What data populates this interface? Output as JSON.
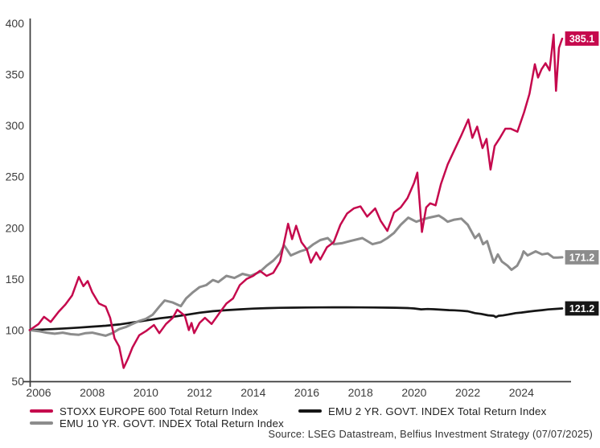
{
  "chart_data": {
    "type": "line",
    "title": "",
    "grid": false,
    "legend_position": "bottom",
    "x_axis": {
      "range": [
        2005.67,
        2025.9
      ],
      "ticks": [
        2006,
        2008,
        2010,
        2012,
        2014,
        2016,
        2018,
        2020,
        2022,
        2024
      ]
    },
    "y_axis": {
      "range": [
        50,
        400
      ],
      "ticks": [
        50,
        100,
        150,
        200,
        250,
        300,
        350,
        400
      ]
    },
    "series": [
      {
        "name": "STOXX EUROPE 600 Total Return Index",
        "color": "#C5094D",
        "end_label": "385.1",
        "points": [
          [
            2005.67,
            100
          ],
          [
            2006.0,
            106
          ],
          [
            2006.2,
            113
          ],
          [
            2006.45,
            108
          ],
          [
            2006.75,
            118
          ],
          [
            2007.0,
            125
          ],
          [
            2007.25,
            134
          ],
          [
            2007.5,
            152
          ],
          [
            2007.67,
            143
          ],
          [
            2007.83,
            148
          ],
          [
            2008.0,
            137
          ],
          [
            2008.25,
            126
          ],
          [
            2008.5,
            123
          ],
          [
            2008.67,
            112
          ],
          [
            2008.83,
            92
          ],
          [
            2009.0,
            84
          ],
          [
            2009.17,
            63
          ],
          [
            2009.33,
            72
          ],
          [
            2009.5,
            83
          ],
          [
            2009.75,
            95
          ],
          [
            2010.0,
            99
          ],
          [
            2010.3,
            105
          ],
          [
            2010.5,
            97
          ],
          [
            2010.75,
            106
          ],
          [
            2011.0,
            112
          ],
          [
            2011.17,
            120
          ],
          [
            2011.45,
            114
          ],
          [
            2011.6,
            100
          ],
          [
            2011.7,
            107
          ],
          [
            2011.8,
            97
          ],
          [
            2012.0,
            107
          ],
          [
            2012.2,
            112
          ],
          [
            2012.45,
            106
          ],
          [
            2012.75,
            117
          ],
          [
            2013.0,
            126
          ],
          [
            2013.25,
            131
          ],
          [
            2013.5,
            144
          ],
          [
            2013.75,
            150
          ],
          [
            2014.0,
            153
          ],
          [
            2014.25,
            158
          ],
          [
            2014.5,
            153
          ],
          [
            2014.75,
            156
          ],
          [
            2015.0,
            167
          ],
          [
            2015.3,
            204
          ],
          [
            2015.45,
            189
          ],
          [
            2015.6,
            202
          ],
          [
            2015.8,
            186
          ],
          [
            2016.0,
            179
          ],
          [
            2016.15,
            166
          ],
          [
            2016.35,
            176
          ],
          [
            2016.5,
            169
          ],
          [
            2016.75,
            181
          ],
          [
            2017.0,
            186
          ],
          [
            2017.25,
            203
          ],
          [
            2017.5,
            214
          ],
          [
            2017.75,
            219
          ],
          [
            2018.0,
            221
          ],
          [
            2018.25,
            211
          ],
          [
            2018.55,
            219
          ],
          [
            2018.75,
            207
          ],
          [
            2019.0,
            197
          ],
          [
            2019.25,
            215
          ],
          [
            2019.5,
            220
          ],
          [
            2019.75,
            229
          ],
          [
            2020.0,
            244
          ],
          [
            2020.12,
            254
          ],
          [
            2020.29,
            196
          ],
          [
            2020.45,
            220
          ],
          [
            2020.6,
            224
          ],
          [
            2020.8,
            222
          ],
          [
            2021.0,
            243
          ],
          [
            2021.25,
            262
          ],
          [
            2021.5,
            276
          ],
          [
            2021.75,
            290
          ],
          [
            2022.02,
            306
          ],
          [
            2022.17,
            288
          ],
          [
            2022.35,
            299
          ],
          [
            2022.55,
            278
          ],
          [
            2022.7,
            287
          ],
          [
            2022.85,
            257
          ],
          [
            2023.0,
            280
          ],
          [
            2023.2,
            288
          ],
          [
            2023.4,
            297
          ],
          [
            2023.6,
            297
          ],
          [
            2023.85,
            294
          ],
          [
            2024.1,
            313
          ],
          [
            2024.3,
            331
          ],
          [
            2024.5,
            360
          ],
          [
            2024.62,
            347
          ],
          [
            2024.75,
            355
          ],
          [
            2024.9,
            361
          ],
          [
            2025.05,
            354
          ],
          [
            2025.2,
            389
          ],
          [
            2025.29,
            334
          ],
          [
            2025.4,
            376
          ],
          [
            2025.52,
            385.1
          ]
        ]
      },
      {
        "name": "EMU 10 YR. GOVT. INDEX Total Return Index",
        "color": "#8C8C8C",
        "end_label": "171.2",
        "points": [
          [
            2005.67,
            100
          ],
          [
            2006.0,
            99
          ],
          [
            2006.3,
            97.5
          ],
          [
            2006.6,
            96.5
          ],
          [
            2006.9,
            97.5
          ],
          [
            2007.2,
            96
          ],
          [
            2007.5,
            95.5
          ],
          [
            2007.75,
            97
          ],
          [
            2008.0,
            97.5
          ],
          [
            2008.25,
            96
          ],
          [
            2008.5,
            94.5
          ],
          [
            2008.75,
            97
          ],
          [
            2009.0,
            101
          ],
          [
            2009.25,
            103
          ],
          [
            2009.5,
            106
          ],
          [
            2009.75,
            109
          ],
          [
            2010.0,
            111
          ],
          [
            2010.25,
            115
          ],
          [
            2010.5,
            123
          ],
          [
            2010.7,
            129
          ],
          [
            2011.0,
            127
          ],
          [
            2011.3,
            123.5
          ],
          [
            2011.5,
            131
          ],
          [
            2011.75,
            137
          ],
          [
            2012.0,
            142
          ],
          [
            2012.25,
            144
          ],
          [
            2012.5,
            149
          ],
          [
            2012.7,
            147
          ],
          [
            2013.0,
            153
          ],
          [
            2013.3,
            151
          ],
          [
            2013.6,
            155
          ],
          [
            2013.9,
            153
          ],
          [
            2014.25,
            157
          ],
          [
            2014.5,
            163
          ],
          [
            2014.75,
            168
          ],
          [
            2015.0,
            175
          ],
          [
            2015.15,
            183
          ],
          [
            2015.4,
            173
          ],
          [
            2015.75,
            177
          ],
          [
            2016.0,
            179
          ],
          [
            2016.25,
            184
          ],
          [
            2016.5,
            188
          ],
          [
            2016.78,
            190
          ],
          [
            2017.0,
            184
          ],
          [
            2017.3,
            185
          ],
          [
            2017.6,
            187
          ],
          [
            2018.07,
            190
          ],
          [
            2018.45,
            184
          ],
          [
            2018.75,
            186
          ],
          [
            2019.0,
            190
          ],
          [
            2019.25,
            195
          ],
          [
            2019.5,
            203
          ],
          [
            2019.78,
            210
          ],
          [
            2020.08,
            206
          ],
          [
            2020.29,
            208
          ],
          [
            2020.56,
            210
          ],
          [
            2020.92,
            212
          ],
          [
            2021.1,
            209
          ],
          [
            2021.25,
            206
          ],
          [
            2021.5,
            208
          ],
          [
            2021.76,
            209
          ],
          [
            2022.0,
            203
          ],
          [
            2022.27,
            190
          ],
          [
            2022.42,
            194
          ],
          [
            2022.57,
            184
          ],
          [
            2022.72,
            187
          ],
          [
            2022.97,
            166
          ],
          [
            2023.12,
            174
          ],
          [
            2023.27,
            167
          ],
          [
            2023.48,
            163
          ],
          [
            2023.63,
            159
          ],
          [
            2023.84,
            163
          ],
          [
            2024.0,
            171
          ],
          [
            2024.08,
            177
          ],
          [
            2024.23,
            173
          ],
          [
            2024.53,
            177
          ],
          [
            2024.77,
            174
          ],
          [
            2024.98,
            175
          ],
          [
            2025.19,
            171
          ],
          [
            2025.34,
            171
          ],
          [
            2025.52,
            171.2
          ]
        ]
      },
      {
        "name": "EMU 2 YR. GOVT. INDEX Total Return Index",
        "color": "#161616",
        "end_label": "121.2",
        "points": [
          [
            2005.67,
            100
          ],
          [
            2006.5,
            101
          ],
          [
            2007.0,
            101.7
          ],
          [
            2007.5,
            102.5
          ],
          [
            2008.0,
            103.4
          ],
          [
            2008.5,
            104.3
          ],
          [
            2009.0,
            105.5
          ],
          [
            2009.5,
            107.5
          ],
          [
            2010.0,
            109.5
          ],
          [
            2010.5,
            111.5
          ],
          [
            2011.0,
            113
          ],
          [
            2011.5,
            115
          ],
          [
            2012.0,
            117
          ],
          [
            2012.5,
            118.5
          ],
          [
            2013.0,
            119.5
          ],
          [
            2013.5,
            120.3
          ],
          [
            2014.0,
            121
          ],
          [
            2014.5,
            121.5
          ],
          [
            2015.0,
            121.8
          ],
          [
            2015.5,
            122
          ],
          [
            2016.0,
            122.1
          ],
          [
            2016.5,
            122.2
          ],
          [
            2017.0,
            122.3
          ],
          [
            2017.5,
            122.3
          ],
          [
            2018.0,
            122.2
          ],
          [
            2018.5,
            122.1
          ],
          [
            2019.0,
            122
          ],
          [
            2019.3,
            121.9
          ],
          [
            2019.75,
            121.6
          ],
          [
            2020.0,
            121.2
          ],
          [
            2020.26,
            120.3
          ],
          [
            2020.5,
            120.6
          ],
          [
            2020.75,
            120.4
          ],
          [
            2021.0,
            120
          ],
          [
            2021.3,
            119.5
          ],
          [
            2021.5,
            119.4
          ],
          [
            2021.75,
            119
          ],
          [
            2022.0,
            118.4
          ],
          [
            2022.27,
            116.6
          ],
          [
            2022.5,
            115.8
          ],
          [
            2022.75,
            114.5
          ],
          [
            2022.97,
            114
          ],
          [
            2023.05,
            112.7
          ],
          [
            2023.15,
            114
          ],
          [
            2023.3,
            114.3
          ],
          [
            2023.5,
            115.2
          ],
          [
            2023.78,
            116.6
          ],
          [
            2024.0,
            117.2
          ],
          [
            2024.25,
            118
          ],
          [
            2024.5,
            118.8
          ],
          [
            2024.77,
            119.5
          ],
          [
            2025.0,
            120.2
          ],
          [
            2025.25,
            120.7
          ],
          [
            2025.52,
            121.2
          ]
        ]
      }
    ],
    "source_note": "Source: LSEG Datastream, Belfius Investment Strategy (07/07/2025)"
  },
  "colors": {
    "axis": "#3a3a3a",
    "tick_text": "#3c3c3c",
    "background": "#ffffff"
  }
}
